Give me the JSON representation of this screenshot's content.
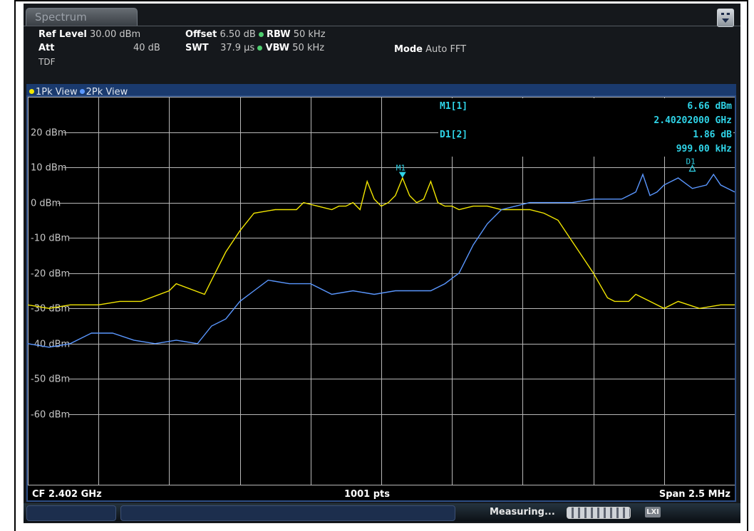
{
  "app": {
    "tab_label": "Spectrum",
    "menu_icon": "menu-dots-icon"
  },
  "settings": {
    "ref_level_label": "Ref Level",
    "ref_level_value": "30.00 dBm",
    "offset_label": "Offset",
    "offset_value": "6.50 dB",
    "rbw_label": "RBW",
    "rbw_value": "50 kHz",
    "att_label": "Att",
    "att_value": "40 dB",
    "swt_label": "SWT",
    "swt_value": "37.9 µs",
    "vbw_label": "VBW",
    "vbw_value": "50 kHz",
    "mode_label": "Mode",
    "mode_value": "Auto FFT",
    "tdf_label": "TDF"
  },
  "views": {
    "view1": "1Pk View",
    "view2": "2Pk View",
    "view1_color": "#f2e600",
    "view2_color": "#5a97ff"
  },
  "markers": {
    "m1_label": "M1[1]",
    "m1_level": "6.66 dBm",
    "m1_freq": "2.40202000 GHz",
    "d1_label": "D1[2]",
    "d1_level": "1.86 dB",
    "d1_freq": "999.00 kHz",
    "m1_tag": "M1",
    "d1_tag": "D1"
  },
  "footer": {
    "cf": "CF 2.402 GHz",
    "pts": "1001 pts",
    "span": "Span 2.5 MHz"
  },
  "status": {
    "measuring": "Measuring...",
    "icon_text": "LXI"
  },
  "chart_data": {
    "type": "line",
    "ylabels": [
      "20 dBm",
      "10 dBm",
      "0 dBm",
      "-10 dBm",
      "-20 dBm",
      "-30 dBm",
      "-40 dBm",
      "-50 dBm",
      "-60 dBm"
    ],
    "ylim": [
      -80,
      30
    ],
    "xlim": [
      0,
      10
    ],
    "grid": true,
    "series": [
      {
        "name": "1Pk View",
        "color": "#f2e600",
        "x": [
          0,
          0.3,
          0.6,
          1.0,
          1.3,
          1.6,
          2.0,
          2.1,
          2.5,
          2.6,
          2.8,
          3.0,
          3.2,
          3.5,
          3.8,
          3.9,
          4.1,
          4.3,
          4.4,
          4.5,
          4.6,
          4.7,
          4.8,
          4.9,
          5.0,
          5.1,
          5.2,
          5.3,
          5.4,
          5.5,
          5.6,
          5.7,
          5.8,
          5.9,
          6.0,
          6.1,
          6.3,
          6.5,
          6.7,
          6.9,
          7.1,
          7.3,
          7.5,
          7.6,
          7.8,
          8.0,
          8.2,
          8.3,
          8.5,
          8.6,
          8.8,
          9.0,
          9.2,
          9.5,
          9.8,
          10
        ],
        "y": [
          -29,
          -30,
          -29,
          -29,
          -28,
          -28,
          -25,
          -23,
          -26,
          -22,
          -14,
          -8,
          -3,
          -2,
          -2,
          0,
          -1,
          -2,
          -1,
          -1,
          0,
          -2,
          6,
          1,
          -1,
          0,
          2,
          7,
          2,
          0,
          1,
          6,
          0,
          -1,
          -1,
          -2,
          -1,
          -1,
          -2,
          -2,
          -2,
          -3,
          -5,
          -8,
          -14,
          -20,
          -27,
          -28,
          -28,
          -26,
          -28,
          -30,
          -28,
          -30,
          -29,
          -29
        ]
      },
      {
        "name": "2Pk View",
        "color": "#5a97ff",
        "x": [
          0,
          0.3,
          0.6,
          0.9,
          1.2,
          1.5,
          1.8,
          2.1,
          2.4,
          2.6,
          2.8,
          3.0,
          3.2,
          3.4,
          3.7,
          4.0,
          4.3,
          4.6,
          4.9,
          5.2,
          5.5,
          5.7,
          5.9,
          6.1,
          6.3,
          6.5,
          6.7,
          6.9,
          7.1,
          7.4,
          7.7,
          8.0,
          8.2,
          8.4,
          8.5,
          8.6,
          8.7,
          8.8,
          8.9,
          9.0,
          9.2,
          9.4,
          9.6,
          9.7,
          9.8,
          10
        ],
        "y": [
          -40,
          -41,
          -40,
          -37,
          -37,
          -39,
          -40,
          -39,
          -40,
          -35,
          -33,
          -28,
          -25,
          -22,
          -23,
          -23,
          -26,
          -25,
          -26,
          -25,
          -25,
          -25,
          -23,
          -20,
          -12,
          -6,
          -2,
          -1,
          0,
          0,
          0,
          1,
          1,
          1,
          2,
          3,
          8,
          2,
          3,
          5,
          7,
          4,
          5,
          8,
          5,
          3
        ]
      }
    ],
    "markers": [
      {
        "name": "M1",
        "x": 5.3,
        "y": 6.66
      },
      {
        "name": "D1",
        "x": 9.4,
        "y": 8.5
      }
    ]
  }
}
